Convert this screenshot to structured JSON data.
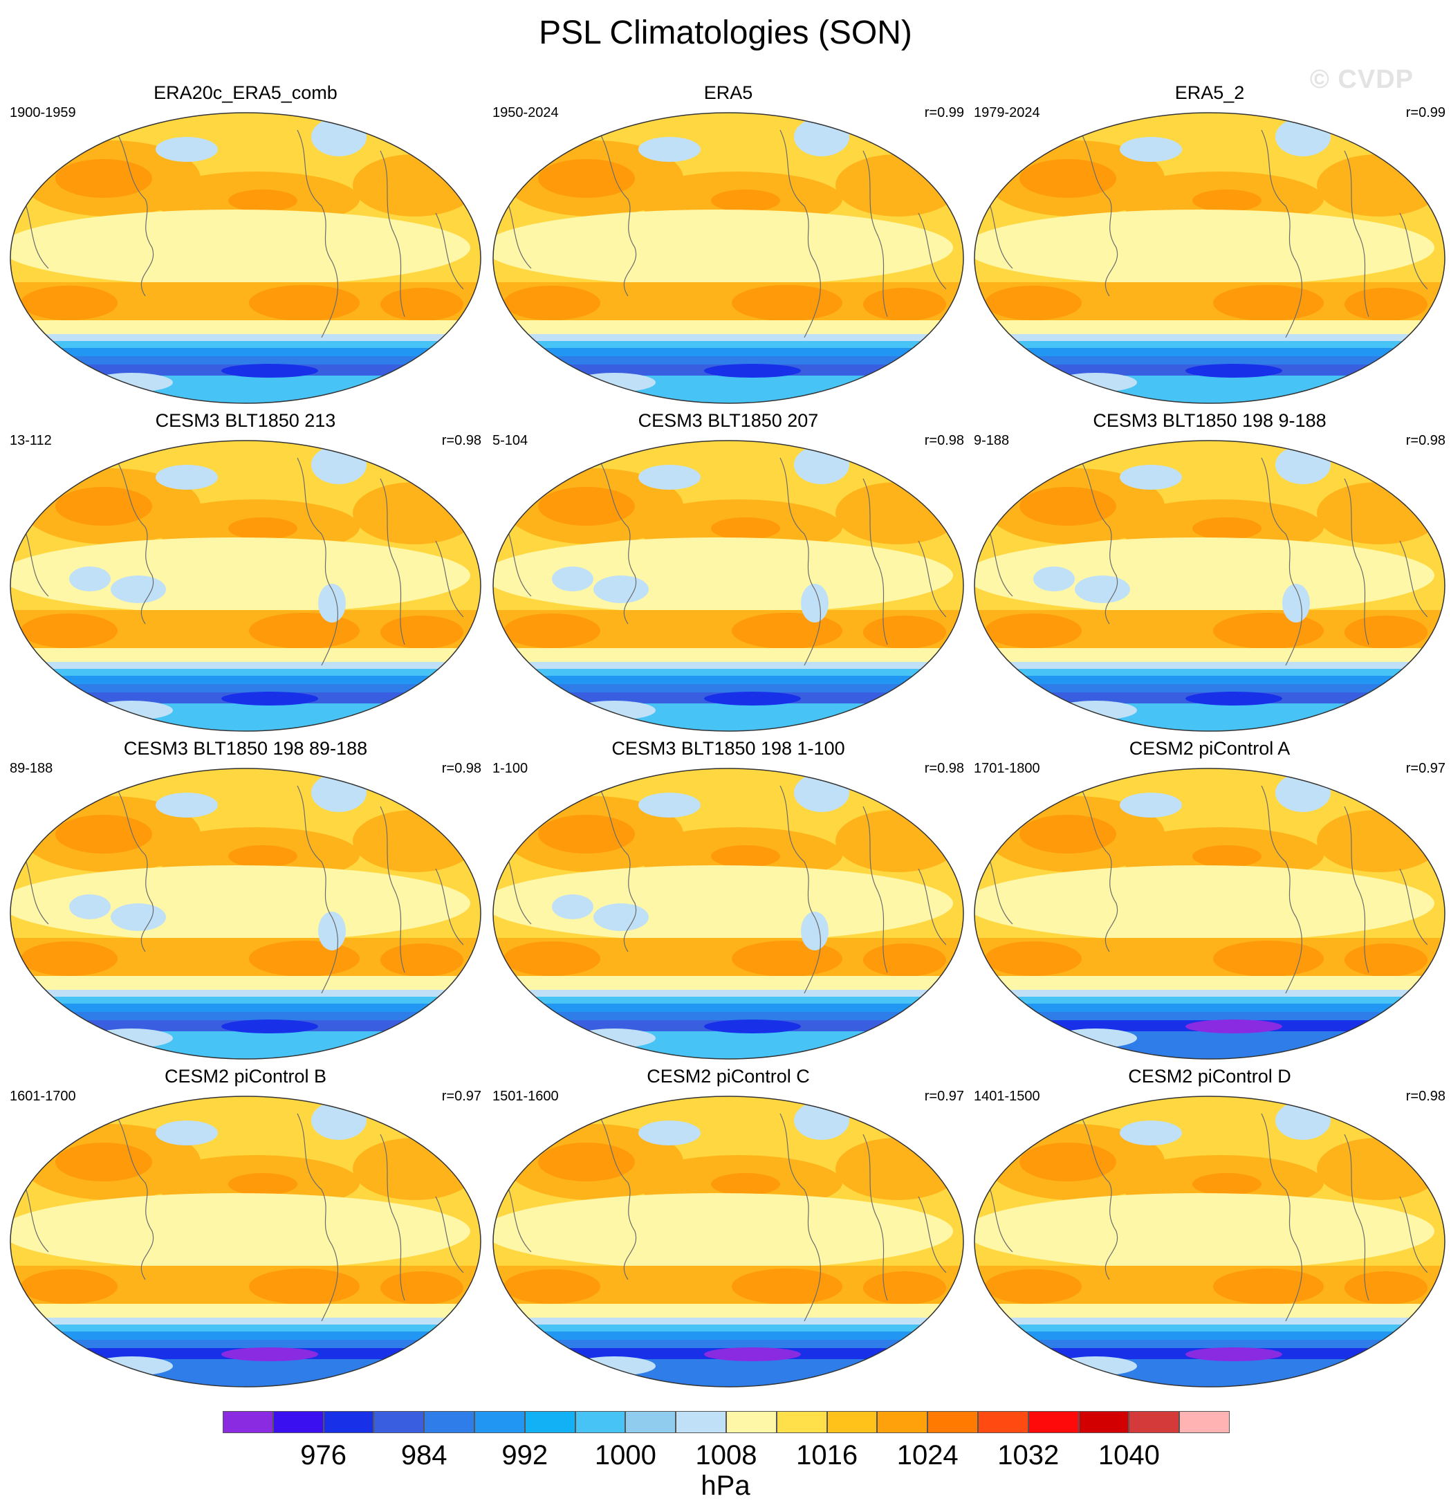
{
  "figure_title": "PSL Climatologies (SON)",
  "watermark": "© CVDP",
  "panels": [
    {
      "title": "ERA20c_ERA5_comb",
      "period": "1900-1959",
      "r": ""
    },
    {
      "title": "ERA5",
      "period": "1950-2024",
      "r": "r=0.99"
    },
    {
      "title": "ERA5_2",
      "period": "1979-2024",
      "r": "r=0.99"
    },
    {
      "title": "CESM3 BLT1850 213",
      "period": "13-112",
      "r": "r=0.98"
    },
    {
      "title": "CESM3 BLT1850 207",
      "period": "5-104",
      "r": "r=0.98"
    },
    {
      "title": "CESM3 BLT1850 198 9-188",
      "period": "9-188",
      "r": "r=0.98"
    },
    {
      "title": "CESM3 BLT1850 198 89-188",
      "period": "89-188",
      "r": "r=0.98"
    },
    {
      "title": "CESM3 BLT1850 198 1-100",
      "period": "1-100",
      "r": "r=0.98"
    },
    {
      "title": "CESM2 piControl A",
      "period": "1701-1800",
      "r": "r=0.97"
    },
    {
      "title": "CESM2 piControl B",
      "period": "1601-1700",
      "r": "r=0.97"
    },
    {
      "title": "CESM2 piControl C",
      "period": "1501-1600",
      "r": "r=0.97"
    },
    {
      "title": "CESM2 piControl D",
      "period": "1401-1500",
      "r": "r=0.98"
    }
  ],
  "colorbar": {
    "units": "hPa",
    "colors": [
      "#8a2be2",
      "#3a10f0",
      "#1830e8",
      "#3a5ee0",
      "#2f7de8",
      "#2196f3",
      "#12b0f5",
      "#47c3f5",
      "#90ccee",
      "#bfe0f6",
      "#fff7a8",
      "#ffe04a",
      "#ffc21a",
      "#ffa10a",
      "#ff7a00",
      "#ff4a12",
      "#ff0a0a",
      "#d20000",
      "#d43a3a",
      "#ffb3b3"
    ],
    "tick_labels": [
      "976",
      "984",
      "992",
      "1000",
      "1008",
      "1016",
      "1024",
      "1032",
      "1040"
    ]
  }
}
